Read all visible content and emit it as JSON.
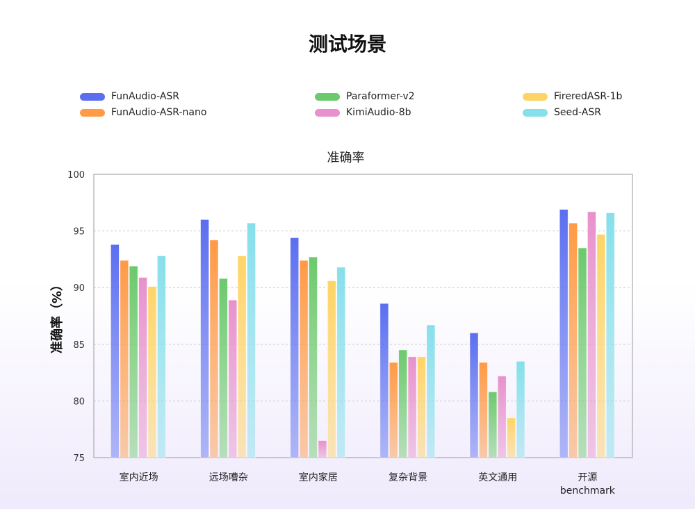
{
  "page_title": "测试场景",
  "chart_data": {
    "type": "bar",
    "title": "准确率",
    "xlabel": "",
    "ylabel": "准确率（%）",
    "ylim": [
      75,
      100
    ],
    "yticks": [
      75,
      80,
      85,
      90,
      95,
      100
    ],
    "grid": true,
    "legend_placement": "top",
    "categories": [
      "室内近场",
      "远场嘈杂",
      "室内家居",
      "复杂背景",
      "英文通用",
      "开源\nbenchmark"
    ],
    "series": [
      {
        "name": "FunAudio-ASR",
        "color": "#5b6ef0",
        "values": [
          93.8,
          96.0,
          94.4,
          88.6,
          86.0,
          96.9
        ]
      },
      {
        "name": "FunAudio-ASR-nano",
        "color": "#ff9a45",
        "values": [
          92.4,
          94.2,
          92.4,
          83.4,
          83.4,
          95.7
        ]
      },
      {
        "name": "Paraformer-v2",
        "color": "#6cc96c",
        "values": [
          91.9,
          90.8,
          92.7,
          84.5,
          80.8,
          93.5
        ]
      },
      {
        "name": "KimiAudio-8b",
        "color": "#e891cc",
        "values": [
          90.9,
          88.9,
          76.5,
          83.9,
          82.2,
          96.7
        ]
      },
      {
        "name": "FireredASR-1b",
        "color": "#ffd466",
        "values": [
          90.1,
          92.8,
          90.6,
          83.9,
          78.5,
          94.7
        ]
      },
      {
        "name": "Seed-ASR",
        "color": "#86dfeb",
        "values": [
          92.8,
          95.7,
          91.8,
          86.7,
          83.5,
          96.6
        ]
      }
    ]
  }
}
